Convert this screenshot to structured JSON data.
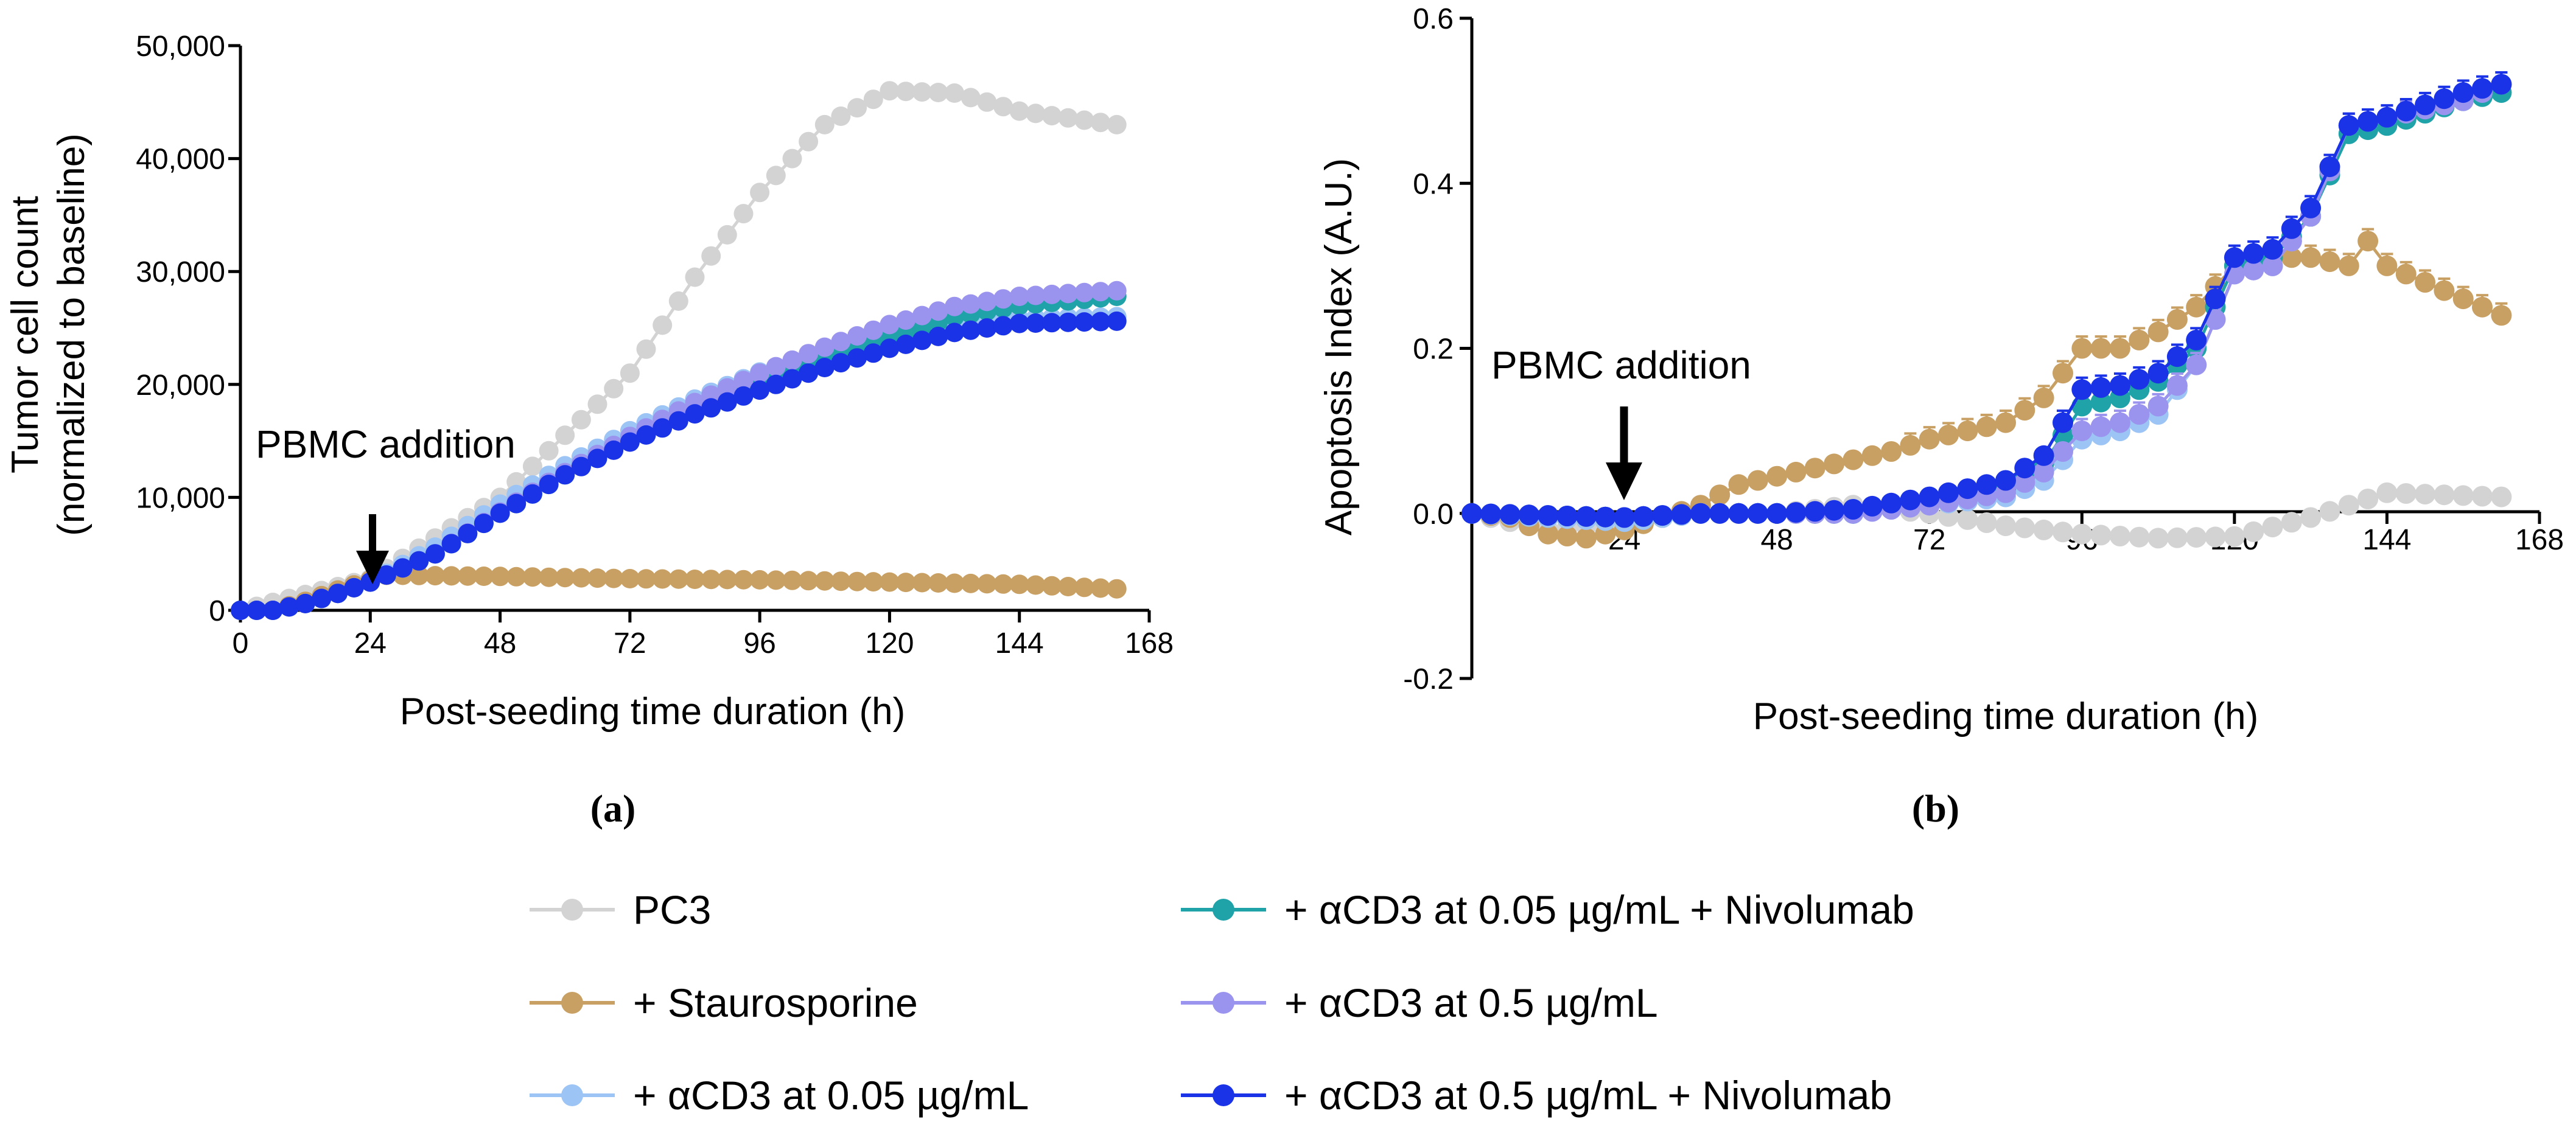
{
  "legend": [
    {
      "name": "PC3",
      "color": "#d3d3d3"
    },
    {
      "name": "+ Staurosporine",
      "color": "#c8a063"
    },
    {
      "name": "+ αCD3 at 0.05 µg/mL",
      "color": "#9cc4f5"
    },
    {
      "name": "+ αCD3 at 0.05 µg/mL + Nivolumab",
      "color": "#1fa3a8"
    },
    {
      "name": "+ αCD3 at 0.5 µg/mL",
      "color": "#9b94ee"
    },
    {
      "name": "+ αCD3 at 0.5 µg/mL + Nivolumab",
      "color": "#1a33e6"
    }
  ],
  "chart_data": [
    {
      "panel_label": "(a)",
      "type": "line",
      "title": "",
      "xlabel": "Post-seeding time duration (h)",
      "ylabel": [
        "Tumor cell count",
        "(normalized to baseline)"
      ],
      "xlim": [
        0,
        168
      ],
      "ylim": [
        0,
        50000
      ],
      "xticks": [
        0,
        24,
        48,
        72,
        96,
        120,
        144,
        168
      ],
      "xtick_labels": [
        "0",
        "24",
        "48",
        "72",
        "96",
        "120",
        "144",
        "168"
      ],
      "yticks": [
        0,
        10000,
        20000,
        30000,
        40000,
        50000
      ],
      "ytick_labels": [
        "0",
        "10,000",
        "20,000",
        "30,000",
        "40,000",
        "50,000"
      ],
      "annotation": {
        "text": "PBMC addition",
        "x": 24
      },
      "series": [
        {
          "name": "PC3",
          "color": "#d3d3d3",
          "points": [
            [
              0,
              0
            ],
            [
              24,
              2800
            ],
            [
              48,
              10000
            ],
            [
              72,
              21000
            ],
            [
              84,
              29500
            ],
            [
              96,
              37000
            ],
            [
              108,
              43000
            ],
            [
              120,
              46000
            ],
            [
              132,
              45800
            ],
            [
              144,
              44200
            ],
            [
              162,
              43000
            ]
          ]
        },
        {
          "name": "+ Staurosporine",
          "color": "#c8a063",
          "points": [
            [
              0,
              0
            ],
            [
              6,
              0
            ],
            [
              12,
              800
            ],
            [
              18,
              1800
            ],
            [
              24,
              2700
            ],
            [
              27,
              3100
            ],
            [
              30,
              3100
            ],
            [
              48,
              3000
            ],
            [
              72,
              2800
            ],
            [
              96,
              2700
            ],
            [
              120,
              2500
            ],
            [
              144,
              2300
            ],
            [
              162,
              1900
            ]
          ]
        },
        {
          "name": "+ αCD3 at 0.05 µg/mL",
          "color": "#9cc4f5",
          "points": [
            [
              0,
              0
            ],
            [
              6,
              0
            ],
            [
              12,
              600
            ],
            [
              18,
              1500
            ],
            [
              24,
              2500
            ],
            [
              36,
              5600
            ],
            [
              48,
              9400
            ],
            [
              60,
              12800
            ],
            [
              72,
              15900
            ],
            [
              84,
              18700
            ],
            [
              96,
              21100
            ],
            [
              108,
              22900
            ],
            [
              120,
              24300
            ],
            [
              132,
              25300
            ],
            [
              144,
              25800
            ],
            [
              162,
              26000
            ]
          ]
        },
        {
          "name": "+ αCD3 at 0.05 µg/mL + Nivolumab",
          "color": "#1fa3a8",
          "points": [
            [
              0,
              0
            ],
            [
              6,
              0
            ],
            [
              12,
              600
            ],
            [
              18,
              1500
            ],
            [
              24,
              2500
            ],
            [
              36,
              5000
            ],
            [
              48,
              8600
            ],
            [
              60,
              12000
            ],
            [
              72,
              15000
            ],
            [
              84,
              17700
            ],
            [
              96,
              20000
            ],
            [
              108,
              22300
            ],
            [
              120,
              24200
            ],
            [
              132,
              26000
            ],
            [
              144,
              27000
            ],
            [
              162,
              27800
            ]
          ]
        },
        {
          "name": "+ αCD3 at 0.5 µg/mL",
          "color": "#9b94ee",
          "points": [
            [
              0,
              0
            ],
            [
              6,
              0
            ],
            [
              12,
              600
            ],
            [
              18,
              1500
            ],
            [
              24,
              2500
            ],
            [
              36,
              5000
            ],
            [
              48,
              8700
            ],
            [
              60,
              12200
            ],
            [
              72,
              15400
            ],
            [
              84,
              18400
            ],
            [
              96,
              21000
            ],
            [
              108,
              23300
            ],
            [
              120,
              25300
            ],
            [
              132,
              26900
            ],
            [
              144,
              27800
            ],
            [
              162,
              28300
            ]
          ]
        },
        {
          "name": "+ αCD3 at 0.5 µg/mL + Nivolumab",
          "color": "#1a33e6",
          "points": [
            [
              0,
              0
            ],
            [
              6,
              0
            ],
            [
              12,
              600
            ],
            [
              18,
              1500
            ],
            [
              24,
              2500
            ],
            [
              36,
              5000
            ],
            [
              48,
              8600
            ],
            [
              60,
              12000
            ],
            [
              72,
              14900
            ],
            [
              84,
              17400
            ],
            [
              96,
              19500
            ],
            [
              108,
              21500
            ],
            [
              120,
              23200
            ],
            [
              132,
              24600
            ],
            [
              144,
              25400
            ],
            [
              162,
              25600
            ]
          ]
        }
      ]
    },
    {
      "panel_label": "(b)",
      "type": "line",
      "title": "",
      "xlabel": "Post-seeding time duration (h)",
      "ylabel": "Apoptosis Index (A.U.)",
      "xlim": [
        0,
        168
      ],
      "ylim": [
        -0.2,
        0.6
      ],
      "xticks": [
        24,
        48,
        72,
        96,
        120,
        144,
        168
      ],
      "xtick_labels": [
        "24",
        "48",
        "72",
        "96",
        "120",
        "144",
        "168"
      ],
      "yticks": [
        -0.2,
        0.0,
        0.2,
        0.4,
        0.6
      ],
      "ytick_labels": [
        "-0.2",
        "0.0",
        "0.2",
        "0.4",
        "0.6"
      ],
      "annotation": {
        "text": "PBMC addition",
        "x": 24
      },
      "series": [
        {
          "name": "PC3",
          "color": "#d3d3d3",
          "points": [
            [
              0,
              0
            ],
            [
              12,
              -0.02
            ],
            [
              24,
              -0.01
            ],
            [
              36,
              0
            ],
            [
              48,
              0
            ],
            [
              60,
              0.01
            ],
            [
              72,
              0
            ],
            [
              84,
              -0.015
            ],
            [
              96,
              -0.025
            ],
            [
              108,
              -0.03
            ],
            [
              120,
              -0.028
            ],
            [
              132,
              -0.005
            ],
            [
              144,
              0.025
            ],
            [
              162,
              0.02
            ]
          ]
        },
        {
          "name": "+ Staurosporine",
          "color": "#c8a063",
          "points": [
            [
              0,
              0
            ],
            [
              6,
              -0.005
            ],
            [
              12,
              -0.025
            ],
            [
              18,
              -0.03
            ],
            [
              24,
              -0.02
            ],
            [
              30,
              -0.005
            ],
            [
              36,
              0.01
            ],
            [
              42,
              0.035
            ],
            [
              48,
              0.045
            ],
            [
              54,
              0.055
            ],
            [
              60,
              0.065
            ],
            [
              66,
              0.075
            ],
            [
              72,
              0.09
            ],
            [
              78,
              0.1
            ],
            [
              84,
              0.11
            ],
            [
              90,
              0.14
            ],
            [
              96,
              0.2
            ],
            [
              102,
              0.2
            ],
            [
              108,
              0.22
            ],
            [
              114,
              0.25
            ],
            [
              120,
              0.3
            ],
            [
              126,
              0.31
            ],
            [
              132,
              0.31
            ],
            [
              138,
              0.3
            ],
            [
              141,
              0.33
            ],
            [
              144,
              0.3
            ],
            [
              150,
              0.28
            ],
            [
              156,
              0.26
            ],
            [
              162,
              0.24
            ]
          ]
        },
        {
          "name": "+ αCD3 at 0.05 µg/mL",
          "color": "#9cc4f5",
          "points": [
            [
              0,
              0
            ],
            [
              24,
              -0.01
            ],
            [
              36,
              0
            ],
            [
              48,
              0
            ],
            [
              60,
              0
            ],
            [
              72,
              0.01
            ],
            [
              84,
              0.02
            ],
            [
              90,
              0.04
            ],
            [
              96,
              0.09
            ],
            [
              102,
              0.1
            ],
            [
              108,
              0.12
            ],
            [
              114,
              0.18
            ],
            [
              120,
              0.29
            ],
            [
              126,
              0.3
            ],
            [
              132,
              0.36
            ],
            [
              138,
              0.47
            ],
            [
              144,
              0.48
            ],
            [
              156,
              0.5
            ],
            [
              162,
              0.52
            ]
          ]
        },
        {
          "name": "+ αCD3 at 0.05 µg/mL + Nivolumab",
          "color": "#1fa3a8",
          "points": [
            [
              0,
              0
            ],
            [
              24,
              -0.005
            ],
            [
              36,
              0
            ],
            [
              48,
              0
            ],
            [
              60,
              0
            ],
            [
              72,
              0.015
            ],
            [
              84,
              0.03
            ],
            [
              90,
              0.06
            ],
            [
              96,
              0.13
            ],
            [
              102,
              0.14
            ],
            [
              108,
              0.16
            ],
            [
              114,
              0.2
            ],
            [
              120,
              0.3
            ],
            [
              126,
              0.31
            ],
            [
              132,
              0.36
            ],
            [
              138,
              0.46
            ],
            [
              144,
              0.47
            ],
            [
              156,
              0.5
            ],
            [
              162,
              0.51
            ]
          ]
        },
        {
          "name": "+ αCD3 at 0.5 µg/mL",
          "color": "#9b94ee",
          "points": [
            [
              0,
              0
            ],
            [
              24,
              -0.005
            ],
            [
              36,
              0
            ],
            [
              48,
              0
            ],
            [
              60,
              0
            ],
            [
              72,
              0.01
            ],
            [
              84,
              0.025
            ],
            [
              90,
              0.05
            ],
            [
              96,
              0.1
            ],
            [
              102,
              0.11
            ],
            [
              108,
              0.13
            ],
            [
              114,
              0.18
            ],
            [
              120,
              0.29
            ],
            [
              126,
              0.3
            ],
            [
              132,
              0.36
            ],
            [
              138,
              0.47
            ],
            [
              144,
              0.48
            ],
            [
              156,
              0.5
            ],
            [
              162,
              0.52
            ]
          ]
        },
        {
          "name": "+ αCD3 at 0.5 µg/mL + Nivolumab",
          "color": "#1a33e6",
          "points": [
            [
              0,
              0
            ],
            [
              24,
              -0.005
            ],
            [
              36,
              0
            ],
            [
              48,
              0
            ],
            [
              60,
              0.005
            ],
            [
              72,
              0.02
            ],
            [
              84,
              0.04
            ],
            [
              90,
              0.07
            ],
            [
              96,
              0.15
            ],
            [
              102,
              0.155
            ],
            [
              108,
              0.17
            ],
            [
              114,
              0.21
            ],
            [
              120,
              0.31
            ],
            [
              126,
              0.32
            ],
            [
              132,
              0.37
            ],
            [
              138,
              0.47
            ],
            [
              144,
              0.48
            ],
            [
              156,
              0.51
            ],
            [
              162,
              0.52
            ]
          ]
        }
      ]
    }
  ]
}
